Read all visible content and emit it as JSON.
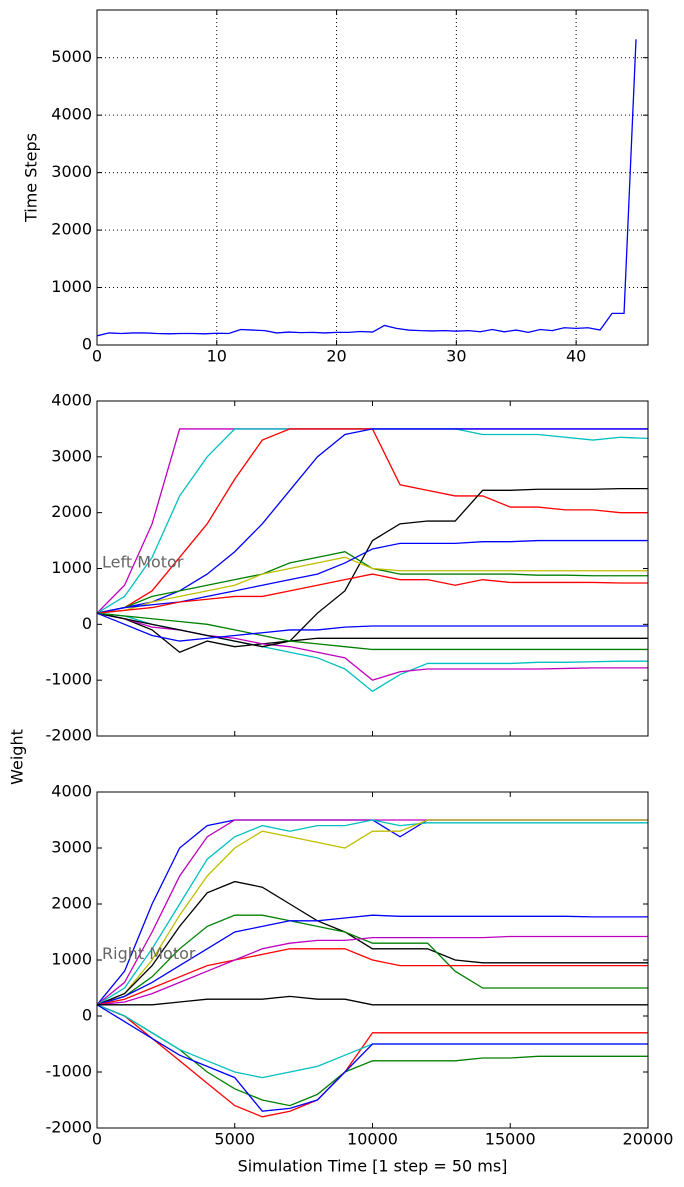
{
  "chart_data": [
    {
      "type": "line",
      "ylabel": "Time Steps",
      "x": [
        0,
        1,
        2,
        3,
        4,
        5,
        6,
        7,
        8,
        9,
        10,
        11,
        12,
        13,
        14,
        15,
        16,
        17,
        18,
        19,
        20,
        21,
        22,
        23,
        24,
        25,
        26,
        27,
        28,
        29,
        30,
        31,
        32,
        33,
        34,
        35,
        36,
        37,
        38,
        39,
        40,
        41,
        42,
        43,
        44,
        45
      ],
      "values": [
        160,
        210,
        200,
        210,
        210,
        200,
        195,
        200,
        200,
        195,
        205,
        200,
        270,
        260,
        250,
        210,
        225,
        215,
        220,
        210,
        220,
        220,
        235,
        225,
        340,
        290,
        260,
        250,
        245,
        250,
        240,
        250,
        230,
        270,
        230,
        260,
        220,
        270,
        250,
        300,
        290,
        300,
        260,
        550,
        550,
        5320
      ],
      "color": "#0000ff",
      "xlim": [
        0,
        46
      ],
      "xticks": [
        0,
        10,
        20,
        30,
        40
      ],
      "ylim": [
        0,
        5830
      ],
      "yticks": [
        0,
        1000,
        2000,
        3000,
        4000,
        5000
      ],
      "grid": true
    },
    {
      "type": "line",
      "ylabel": "Weight",
      "annotation": "Left Motor",
      "x": [
        0,
        1000,
        2000,
        3000,
        4000,
        5000,
        6000,
        7000,
        8000,
        9000,
        10000,
        11000,
        12000,
        13000,
        14000,
        15000,
        16000,
        17000,
        18000,
        19000,
        20000
      ],
      "xlim": [
        0,
        20000
      ],
      "ylim": [
        -2000,
        4000
      ],
      "yticks": [
        -2000,
        -1000,
        0,
        1000,
        2000,
        3000,
        4000
      ],
      "series": [
        {
          "color": "#bf00bf",
          "values": [
            200,
            700,
            1800,
            3500,
            3500,
            3500,
            3500,
            3500,
            3500,
            3500,
            3500,
            3500,
            3500,
            3500,
            3500,
            3500,
            3500,
            3500,
            3500,
            3500,
            3500
          ]
        },
        {
          "color": "#00bfbf",
          "values": [
            200,
            500,
            1200,
            2300,
            3000,
            3500,
            3500,
            3500,
            3500,
            3500,
            3500,
            3500,
            3500,
            3500,
            3400,
            3400,
            3400,
            3350,
            3300,
            3350,
            3330
          ]
        },
        {
          "color": "#ff0000",
          "values": [
            200,
            300,
            600,
            1200,
            1800,
            2600,
            3300,
            3500,
            3500,
            3500,
            3500,
            2500,
            2400,
            2300,
            2300,
            2100,
            2100,
            2050,
            2050,
            2000,
            2000
          ]
        },
        {
          "color": "#0000ff",
          "values": [
            200,
            300,
            400,
            600,
            900,
            1300,
            1800,
            2400,
            3000,
            3400,
            3500,
            3500,
            3500,
            3500,
            3500,
            3500,
            3500,
            3500,
            3500,
            3500,
            3500
          ]
        },
        {
          "color": "#000000",
          "values": [
            200,
            100,
            -100,
            -500,
            -300,
            -400,
            -350,
            -300,
            200,
            600,
            1500,
            1800,
            1850,
            1850,
            2400,
            2400,
            2420,
            2420,
            2420,
            2430,
            2430
          ]
        },
        {
          "color": "#008000",
          "values": [
            200,
            300,
            500,
            600,
            700,
            800,
            900,
            1100,
            1200,
            1300,
            1000,
            900,
            900,
            900,
            900,
            900,
            880,
            880,
            870,
            870,
            870
          ]
        },
        {
          "color": "#bfbf00",
          "values": [
            200,
            250,
            400,
            500,
            600,
            700,
            900,
            1000,
            1100,
            1200,
            1000,
            960,
            960,
            960,
            960,
            960,
            960,
            960,
            960,
            960,
            960
          ]
        },
        {
          "color": "#0000ff",
          "values": [
            200,
            300,
            350,
            400,
            500,
            600,
            700,
            800,
            900,
            1100,
            1350,
            1450,
            1450,
            1450,
            1480,
            1480,
            1500,
            1500,
            1500,
            1500,
            1500
          ]
        },
        {
          "color": "#00bfbf",
          "values": [
            200,
            150,
            0,
            -100,
            -200,
            -300,
            -400,
            -500,
            -600,
            -800,
            -1200,
            -900,
            -700,
            -700,
            -700,
            -700,
            -680,
            -680,
            -670,
            -660,
            -660
          ]
        },
        {
          "color": "#bf00bf",
          "values": [
            200,
            100,
            -50,
            -100,
            -200,
            -250,
            -350,
            -400,
            -500,
            -600,
            -1000,
            -850,
            -800,
            -800,
            -800,
            -800,
            -800,
            -790,
            -780,
            -780,
            -780
          ]
        },
        {
          "color": "#ff0000",
          "values": [
            200,
            250,
            300,
            400,
            450,
            500,
            500,
            600,
            700,
            800,
            900,
            800,
            800,
            700,
            800,
            750,
            750,
            750,
            750,
            740,
            740
          ]
        },
        {
          "color": "#000000",
          "values": [
            200,
            100,
            0,
            -100,
            -200,
            -300,
            -400,
            -300,
            -250,
            -250,
            -250,
            -250,
            -250,
            -250,
            -250,
            -250,
            -250,
            -250,
            -250,
            -250,
            -250
          ]
        },
        {
          "color": "#008000",
          "values": [
            200,
            150,
            100,
            50,
            0,
            -100,
            -200,
            -300,
            -350,
            -400,
            -450,
            -450,
            -450,
            -450,
            -450,
            -450,
            -450,
            -450,
            -450,
            -450,
            -450
          ]
        },
        {
          "color": "#0000ff",
          "values": [
            200,
            0,
            -200,
            -300,
            -250,
            -200,
            -150,
            -100,
            -100,
            -50,
            -30,
            -30,
            -30,
            -30,
            -30,
            -30,
            -30,
            -30,
            -30,
            -30,
            -30
          ]
        }
      ]
    },
    {
      "type": "line",
      "xlabel": "Simulation Time [1 step = 50 ms]",
      "annotation": "Right Motor",
      "x": [
        0,
        1000,
        2000,
        3000,
        4000,
        5000,
        6000,
        7000,
        8000,
        9000,
        10000,
        11000,
        12000,
        13000,
        14000,
        15000,
        16000,
        17000,
        18000,
        19000,
        20000
      ],
      "xlim": [
        0,
        20000
      ],
      "xticks": [
        0,
        5000,
        10000,
        15000,
        20000
      ],
      "ylim": [
        -2000,
        4000
      ],
      "yticks": [
        -2000,
        -1000,
        0,
        1000,
        2000,
        3000,
        4000
      ],
      "series": [
        {
          "color": "#0000ff",
          "values": [
            200,
            800,
            2000,
            3000,
            3400,
            3500,
            3500,
            3500,
            3500,
            3500,
            3500,
            3200,
            3500,
            3500,
            3500,
            3500,
            3500,
            3500,
            3500,
            3500,
            3500
          ]
        },
        {
          "color": "#bf00bf",
          "values": [
            200,
            600,
            1500,
            2500,
            3200,
            3500,
            3500,
            3500,
            3500,
            3500,
            3500,
            3500,
            3500,
            3500,
            3500,
            3500,
            3500,
            3500,
            3500,
            3500,
            3500
          ]
        },
        {
          "color": "#00bfbf",
          "values": [
            200,
            500,
            1200,
            2000,
            2800,
            3200,
            3400,
            3300,
            3400,
            3400,
            3500,
            3400,
            3450,
            3450,
            3450,
            3450,
            3450,
            3450,
            3450,
            3450,
            3450
          ]
        },
        {
          "color": "#bfbf00",
          "values": [
            200,
            400,
            1000,
            1800,
            2500,
            3000,
            3300,
            3200,
            3100,
            3000,
            3300,
            3300,
            3500,
            3500,
            3500,
            3500,
            3500,
            3500,
            3500,
            3500,
            3500
          ]
        },
        {
          "color": "#000000",
          "values": [
            200,
            400,
            900,
            1600,
            2200,
            2400,
            2300,
            2000,
            1700,
            1500,
            1200,
            1200,
            1200,
            1000,
            950,
            950,
            950,
            950,
            950,
            950,
            950
          ]
        },
        {
          "color": "#008000",
          "values": [
            200,
            350,
            700,
            1200,
            1600,
            1800,
            1800,
            1700,
            1600,
            1500,
            1300,
            1300,
            1300,
            800,
            500,
            500,
            500,
            500,
            500,
            500,
            500
          ]
        },
        {
          "color": "#0000ff",
          "values": [
            200,
            350,
            600,
            900,
            1200,
            1500,
            1600,
            1700,
            1700,
            1750,
            1800,
            1780,
            1780,
            1780,
            1780,
            1780,
            1780,
            1780,
            1770,
            1770,
            1770
          ]
        },
        {
          "color": "#ff0000",
          "values": [
            200,
            300,
            500,
            700,
            900,
            1000,
            1100,
            1200,
            1200,
            1200,
            1000,
            900,
            900,
            900,
            900,
            900,
            900,
            900,
            900,
            900,
            900
          ]
        },
        {
          "color": "#bf00bf",
          "values": [
            200,
            250,
            400,
            600,
            800,
            1000,
            1200,
            1300,
            1350,
            1350,
            1400,
            1400,
            1400,
            1400,
            1400,
            1420,
            1420,
            1420,
            1420,
            1420,
            1420
          ]
        },
        {
          "color": "#008000",
          "values": [
            200,
            0,
            -300,
            -600,
            -1000,
            -1300,
            -1500,
            -1600,
            -1400,
            -1000,
            -800,
            -800,
            -800,
            -800,
            -750,
            -750,
            -720,
            -720,
            -720,
            -720,
            -720
          ]
        },
        {
          "color": "#ff0000",
          "values": [
            200,
            0,
            -400,
            -800,
            -1200,
            -1600,
            -1800,
            -1700,
            -1500,
            -1000,
            -300,
            -300,
            -300,
            -300,
            -300,
            -300,
            -300,
            -300,
            -300,
            -300,
            -300
          ]
        },
        {
          "color": "#00bfbf",
          "values": [
            200,
            0,
            -300,
            -600,
            -800,
            -1000,
            -1100,
            -1000,
            -900,
            -700,
            -500,
            -500,
            -500,
            -500,
            -500,
            -500,
            -500,
            -500,
            -500,
            -500,
            -500
          ]
        },
        {
          "color": "#0000ff",
          "values": [
            200,
            -100,
            -400,
            -700,
            -900,
            -1100,
            -1700,
            -1650,
            -1500,
            -1000,
            -500,
            -500,
            -500,
            -500,
            -500,
            -500,
            -500,
            -500,
            -500,
            -500,
            -500
          ]
        },
        {
          "color": "#000000",
          "values": [
            200,
            200,
            200,
            250,
            300,
            300,
            300,
            350,
            300,
            300,
            200,
            200,
            200,
            200,
            200,
            200,
            200,
            200,
            200,
            200,
            200
          ]
        }
      ]
    }
  ]
}
